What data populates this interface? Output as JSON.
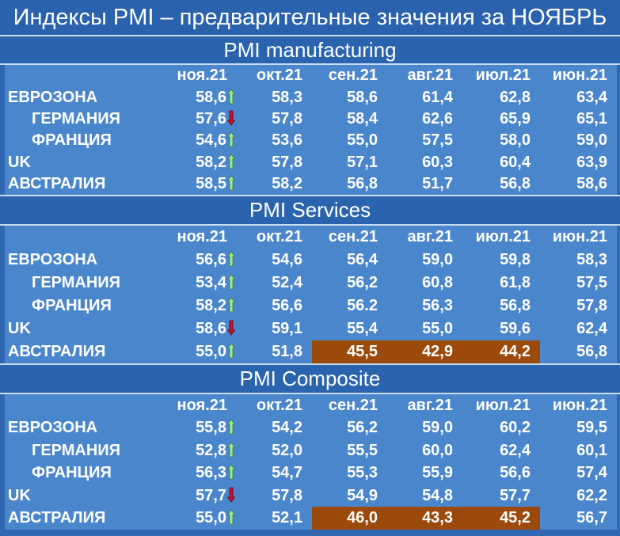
{
  "title": "Индексы PMI – предварительные значения за НОЯБРЬ",
  "chart_data": [
    {
      "type": "table",
      "title": "PMI manufacturing",
      "columns": [
        "ноя.21",
        "окт.21",
        "сен.21",
        "авг.21",
        "июл.21",
        "июн.21"
      ],
      "rows": [
        {
          "label": "ЕВРОЗОНА",
          "indent": false,
          "values": [
            "58,6",
            "58,3",
            "58,6",
            "61,4",
            "62,8",
            "63,4"
          ],
          "trend": "up"
        },
        {
          "label": "ГЕРМАНИЯ",
          "indent": true,
          "values": [
            "57,6",
            "57,8",
            "58,4",
            "62,6",
            "65,9",
            "65,1"
          ],
          "trend": "down"
        },
        {
          "label": "ФРАНЦИЯ",
          "indent": true,
          "values": [
            "54,6",
            "53,6",
            "55,0",
            "57,5",
            "58,0",
            "59,0"
          ],
          "trend": "up"
        },
        {
          "label": "UK",
          "indent": false,
          "values": [
            "58,2",
            "57,8",
            "57,1",
            "60,3",
            "60,4",
            "63,9"
          ],
          "trend": "up"
        },
        {
          "label": "АВСТРАЛИЯ",
          "indent": false,
          "values": [
            "58,5",
            "58,2",
            "56,8",
            "51,7",
            "56,8",
            "58,6"
          ],
          "trend": "up"
        }
      ]
    },
    {
      "type": "table",
      "title": "PMI Services",
      "columns": [
        "ноя.21",
        "окт.21",
        "сен.21",
        "авг.21",
        "июл.21",
        "июн.21"
      ],
      "rows": [
        {
          "label": "ЕВРОЗОНА",
          "indent": false,
          "values": [
            "56,6",
            "54,6",
            "56,4",
            "59,0",
            "59,8",
            "58,3"
          ],
          "trend": "up"
        },
        {
          "label": "ГЕРМАНИЯ",
          "indent": true,
          "values": [
            "53,4",
            "52,4",
            "56,2",
            "60,8",
            "61,8",
            "57,5"
          ],
          "trend": "up"
        },
        {
          "label": "ФРАНЦИЯ",
          "indent": true,
          "values": [
            "58,2",
            "56,6",
            "56.2",
            "56,3",
            "56,8",
            "57,8"
          ],
          "trend": "up"
        },
        {
          "label": "UK",
          "indent": false,
          "values": [
            "58,6",
            "59,1",
            "55,4",
            "55,0",
            "59,6",
            "62,4"
          ],
          "trend": "down"
        },
        {
          "label": "АВСТРАЛИЯ",
          "indent": false,
          "values": [
            "55,0",
            "51,8",
            "45,5",
            "42,9",
            "44,2",
            "56,8"
          ],
          "trend": "up",
          "highlight": [
            2,
            3,
            4
          ]
        }
      ]
    },
    {
      "type": "table",
      "title": "PMI Composite",
      "columns": [
        "ноя.21",
        "окт.21",
        "сен.21",
        "авг.21",
        "июл.21",
        "июн.21"
      ],
      "rows": [
        {
          "label": "ЕВРОЗОНА",
          "indent": false,
          "values": [
            "55,8",
            "54,2",
            "56,2",
            "59,0",
            "60,2",
            "59,5"
          ],
          "trend": "up"
        },
        {
          "label": "ГЕРМАНИЯ",
          "indent": true,
          "values": [
            "52,8",
            "52,0",
            "55,5",
            "60,0",
            "62,4",
            "60,1"
          ],
          "trend": "up"
        },
        {
          "label": "ФРАНЦИЯ",
          "indent": true,
          "values": [
            "56,3",
            "54,7",
            "55,3",
            "55,9",
            "56,6",
            "57,4"
          ],
          "trend": "up"
        },
        {
          "label": "UK",
          "indent": false,
          "values": [
            "57,7",
            "57,8",
            "54,9",
            "54,8",
            "57,7",
            "62,2"
          ],
          "trend": "down"
        },
        {
          "label": "АВСТРАЛИЯ",
          "indent": false,
          "values": [
            "55,0",
            "52,1",
            "46,0",
            "43,3",
            "45,2",
            "56,7"
          ],
          "trend": "up",
          "highlight": [
            2,
            3,
            4
          ]
        }
      ]
    }
  ],
  "colors": {
    "background": "#2f68b0",
    "table": "#4a86cc",
    "highlight": "#9c4a0c",
    "up_arrow": "#9be89b",
    "down_arrow": "#c8102e"
  },
  "icons": {
    "up": "up-arrow-icon",
    "down": "down-arrow-icon"
  }
}
